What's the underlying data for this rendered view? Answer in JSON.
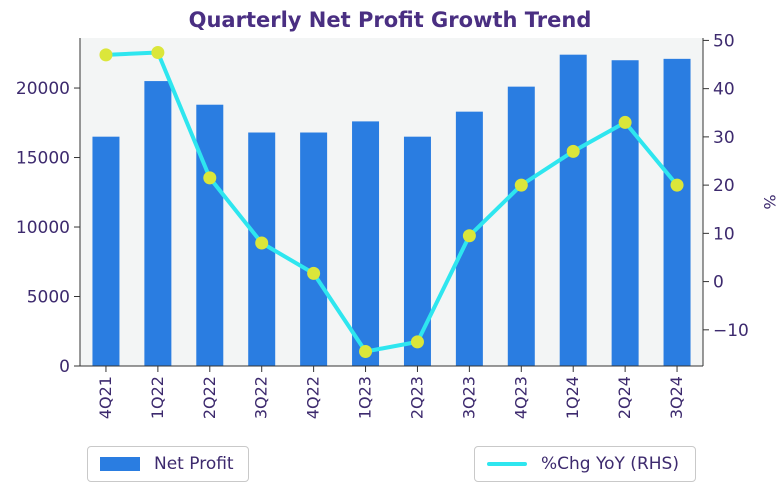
{
  "chart_data": {
    "type": "bar",
    "title": "Quarterly Net Profit Growth Trend",
    "categories": [
      "4Q21",
      "1Q22",
      "2Q22",
      "3Q22",
      "4Q22",
      "1Q23",
      "2Q23",
      "3Q23",
      "4Q23",
      "1Q24",
      "2Q24",
      "3Q24"
    ],
    "series": [
      {
        "name": "Net Profit",
        "type": "bar",
        "axis": "left",
        "color": "#2a7de1",
        "values": [
          16500,
          20500,
          18800,
          16800,
          16800,
          17600,
          16500,
          18300,
          20100,
          22400,
          22000,
          22100
        ]
      },
      {
        "name": "%Chg YoY (RHS)",
        "type": "line",
        "axis": "right",
        "color": "#2ee6ef",
        "marker_color": "#dbe63a",
        "values": [
          47,
          47.5,
          21.5,
          8,
          1.7,
          -14.5,
          -12.5,
          9.5,
          20,
          27,
          33,
          20
        ]
      }
    ],
    "y_left": {
      "ticks": [
        0,
        5000,
        10000,
        15000,
        20000
      ],
      "lim": [
        0,
        23600
      ]
    },
    "y_right": {
      "label": "%",
      "ticks": [
        -10,
        0,
        10,
        20,
        30,
        40,
        50
      ],
      "lim": [
        -17.5,
        50.5
      ]
    },
    "plot_background": "#f3f5f5",
    "legend": [
      {
        "label": "Net Profit",
        "kind": "bar",
        "position": "bottom-left"
      },
      {
        "label": "%Chg YoY (RHS)",
        "kind": "line",
        "position": "bottom-right"
      }
    ]
  }
}
